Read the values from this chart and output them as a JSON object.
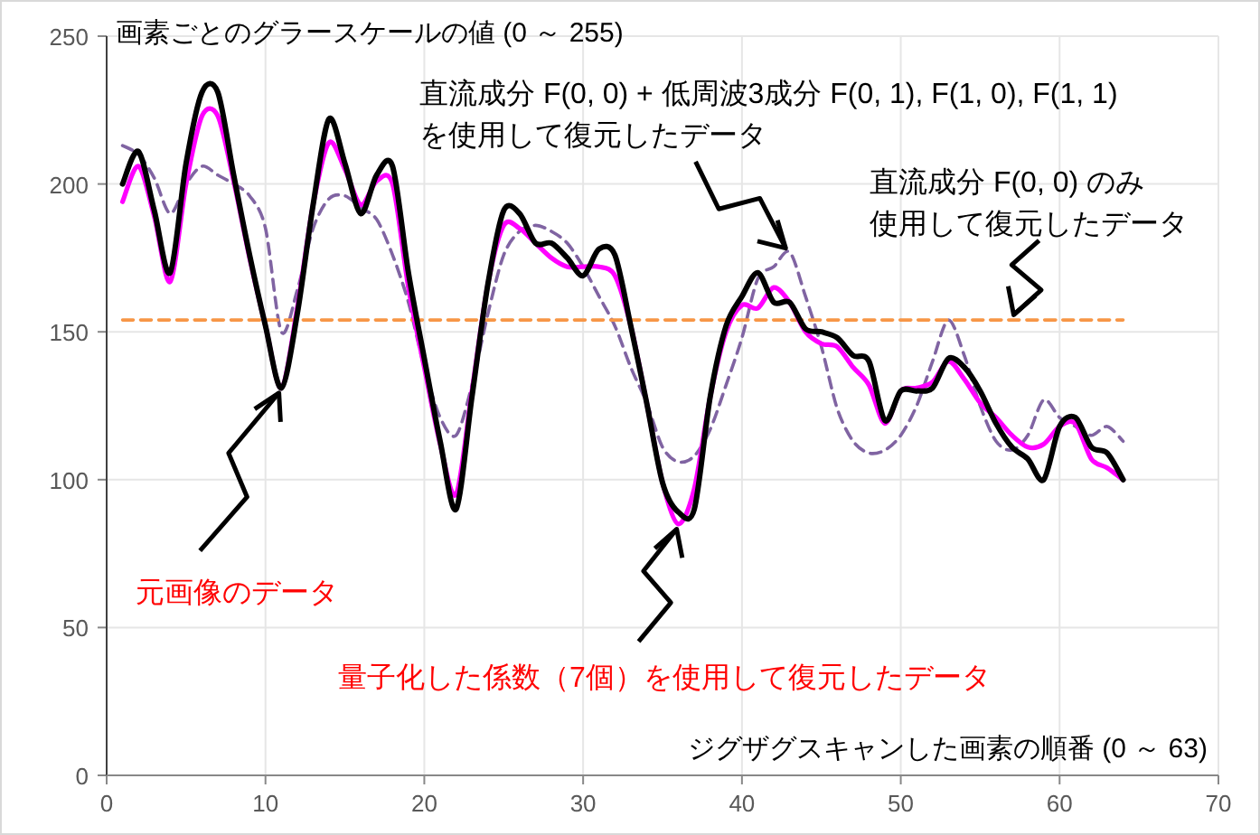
{
  "chart_data": {
    "type": "line",
    "ylabel": "画素ごとのグラースケールの値 (0 ～ 255)",
    "xlabel": "ジグザグスキャンした画素の順番 (0 ～ 63)",
    "x": [
      1,
      2,
      3,
      4,
      5,
      6,
      7,
      8,
      9,
      10,
      11,
      12,
      13,
      14,
      15,
      16,
      17,
      18,
      19,
      20,
      21,
      22,
      23,
      24,
      25,
      26,
      27,
      28,
      29,
      30,
      31,
      32,
      33,
      34,
      35,
      36,
      37,
      38,
      39,
      40,
      41,
      42,
      43,
      44,
      45,
      46,
      47,
      48,
      49,
      50,
      51,
      52,
      53,
      54,
      55,
      56,
      57,
      58,
      59,
      60,
      61,
      62,
      63,
      64
    ],
    "xlim": [
      0,
      70
    ],
    "xticks": [
      0,
      10,
      20,
      30,
      40,
      50,
      60,
      70
    ],
    "ylim": [
      0,
      250
    ],
    "yticks": [
      0,
      50,
      100,
      150,
      200,
      250
    ],
    "grid": true,
    "marker": "none",
    "series": [
      {
        "color": "#8064a2",
        "line_style": "dashed",
        "values": [
          213,
          210,
          202,
          190,
          200,
          206,
          203,
          200,
          196,
          185,
          150,
          164,
          185,
          195,
          196,
          192,
          188,
          176,
          160,
          138,
          121,
          115,
          132,
          156,
          176,
          184,
          186,
          184,
          180,
          172,
          162,
          152,
          138,
          126,
          111,
          106,
          108,
          117,
          132,
          148,
          168,
          172,
          177,
          162,
          145,
          124,
          113,
          109,
          110,
          115,
          125,
          140,
          154,
          142,
          125,
          113,
          110,
          115,
          127,
          121,
          118,
          115,
          118,
          113
        ]
      },
      {
        "color": "#f79646",
        "line_style": "dashed",
        "x": [
          1,
          64
        ],
        "values": [
          154,
          154
        ]
      },
      {
        "color": "#ff00ff",
        "line_style": "solid",
        "values": [
          194,
          206,
          189,
          167,
          200,
          223,
          223,
          201,
          175,
          152,
          131,
          158,
          193,
          214,
          205,
          193,
          201,
          200,
          165,
          138,
          112,
          95,
          130,
          166,
          186,
          185,
          180,
          175,
          172,
          172,
          172,
          169,
          152,
          126,
          99,
          85,
          97,
          128,
          150,
          159,
          158,
          165,
          160,
          150,
          146,
          145,
          138,
          132,
          119,
          130,
          131,
          133,
          140,
          134,
          126,
          121,
          115,
          111,
          112,
          118,
          119,
          107,
          104,
          100
        ]
      },
      {
        "color": "#000000",
        "line_style": "solid",
        "values": [
          200,
          211,
          191,
          170,
          207,
          231,
          231,
          203,
          176,
          152,
          131,
          156,
          193,
          222,
          207,
          190,
          203,
          206,
          170,
          141,
          113,
          90,
          128,
          166,
          191,
          190,
          180,
          180,
          175,
          169,
          178,
          176,
          152,
          126,
          99,
          89,
          90,
          128,
          152,
          162,
          170,
          160,
          160,
          151,
          150,
          148,
          142,
          140,
          120,
          130,
          130,
          131,
          141,
          138,
          130,
          119,
          111,
          107,
          100,
          118,
          121,
          111,
          109,
          100
        ]
      }
    ],
    "annotations": [
      "直流成分 F(0, 0) + 低周波3成分 F(0, 1), F(1, 0), F(1, 1)",
      {
        "text": "を使用して復元したデータ",
        "x": 43,
        "y": 177
      },
      "直流成分 F(0, 0) のみ",
      {
        "text": "使用して復元したデータ",
        "x": 57,
        "y": 154
      },
      {
        "text": "元画像のデータ",
        "x": 11,
        "y": 131
      },
      {
        "text": "量子化した係数（7個）を使用して復元したデータ",
        "x": 36,
        "y": 85
      }
    ]
  }
}
